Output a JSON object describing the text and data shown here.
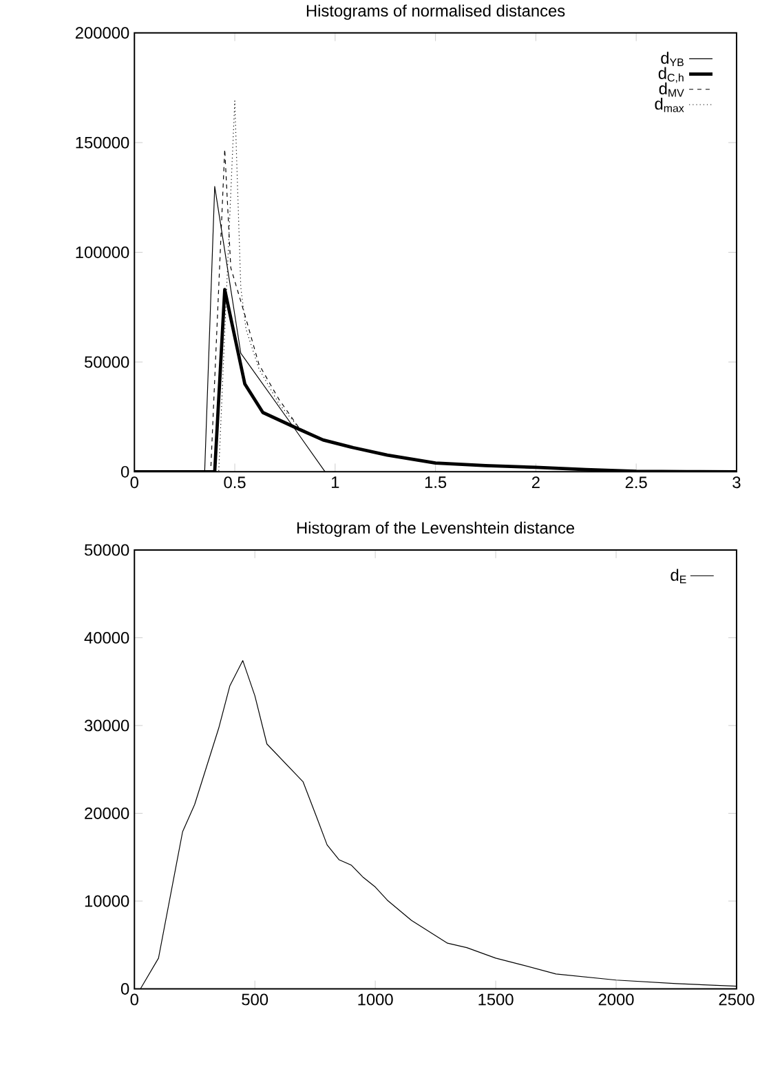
{
  "chart_data": [
    {
      "type": "line",
      "title": "Histograms of normalised distances",
      "xlim": [
        0,
        3
      ],
      "ylim": [
        0,
        200000
      ],
      "xticks": [
        0,
        0.5,
        1,
        1.5,
        2,
        2.5,
        3
      ],
      "yticks": [
        0,
        50000,
        100000,
        150000,
        200000
      ],
      "legend": "top right",
      "series": [
        {
          "name": "d$_{YB}$",
          "color": "#000000",
          "line_style": "solid",
          "x": [
            0,
            0.1,
            0.2,
            0.3,
            0.35,
            0.4,
            0.53,
            0.8,
            0.95
          ],
          "values": [
            0,
            0,
            0,
            0,
            0,
            130000,
            54000,
            19400,
            0
          ]
        },
        {
          "name": "d$_{C,h}$",
          "color": "#000000",
          "line_style": "solid",
          "x": [
            0,
            0.1,
            0.2,
            0.3,
            0.4,
            0.45,
            0.55,
            0.64,
            0.82,
            0.94,
            1.09,
            1.26,
            1.5,
            1.75,
            2,
            2.25,
            2.5,
            2.75,
            3
          ],
          "values": [
            0,
            0,
            0,
            0,
            0,
            83000,
            40000,
            27000,
            19400,
            14500,
            11000,
            7600,
            4000,
            2800,
            2000,
            1000,
            200,
            100,
            0
          ]
        },
        {
          "name": "d$_{MV}$",
          "color": "#000000",
          "line_style": "dashed",
          "x": [
            0,
            0.1,
            0.2,
            0.3,
            0.38,
            0.45,
            0.48,
            0.555,
            0.62,
            0.72,
            0.82,
            0.94,
            1.09,
            1.26,
            1.5,
            1.75,
            2,
            2.5,
            3
          ],
          "values": [
            0,
            0,
            0,
            0,
            0,
            147000,
            93000,
            70000,
            49000,
            33000,
            20000,
            14500,
            11000,
            7600,
            4000,
            2800,
            2000,
            200,
            0
          ]
        },
        {
          "name": "d$_{max}$",
          "color": "#000000",
          "line_style": "dotted",
          "x": [
            0,
            0.1,
            0.2,
            0.3,
            0.42,
            0.5,
            0.53,
            0.556,
            0.62,
            0.72,
            0.82,
            0.94,
            1.09,
            1.26,
            1.5,
            1.75,
            2,
            2.5,
            3
          ],
          "values": [
            0,
            0,
            0,
            0,
            0,
            169000,
            84000,
            65000,
            47000,
            31000,
            20000,
            14500,
            11000,
            7600,
            4000,
            2800,
            2000,
            200,
            0
          ]
        }
      ]
    },
    {
      "type": "line",
      "title": "Histogram of the Levenshtein distance",
      "xlim": [
        0,
        2500
      ],
      "ylim": [
        0,
        50000
      ],
      "xticks": [
        0,
        500,
        1000,
        1500,
        2000,
        2500
      ],
      "yticks": [
        0,
        10000,
        20000,
        30000,
        40000,
        50000
      ],
      "legend": "top right",
      "series": [
        {
          "name": "d$_{E}$",
          "color": "#000000",
          "line_style": "solid",
          "x": [
            25,
            100,
            200,
            250,
            350,
            396,
            450,
            500,
            550,
            700,
            756,
            800,
            850,
            900,
            950,
            1000,
            1050,
            1150,
            1300,
            1380,
            1500,
            1600,
            1750,
            2000,
            2250,
            2500
          ],
          "values": [
            0,
            3500,
            17900,
            21000,
            29700,
            34500,
            37400,
            33400,
            27900,
            23600,
            19600,
            16400,
            14700,
            14100,
            12700,
            11600,
            10100,
            7800,
            5200,
            4700,
            3500,
            2800,
            1700,
            1000,
            600,
            300
          ]
        }
      ]
    }
  ]
}
